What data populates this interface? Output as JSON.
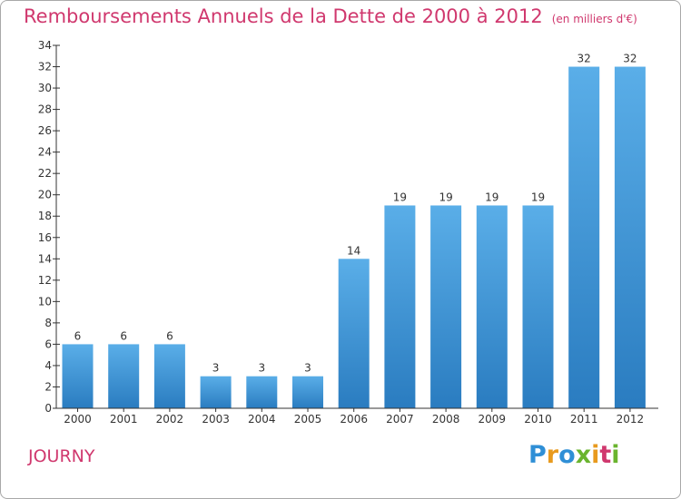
{
  "header": {
    "title": "Remboursements Annuels de la Dette de 2000 à 2012",
    "unit": "(en milliers d'€)"
  },
  "footer": {
    "commune": "JOURNY",
    "brand_letters": [
      "P",
      "r",
      "o",
      "x",
      "i",
      "t",
      "i"
    ],
    "brand_colors": [
      "#2f8fd6",
      "#e89a1e",
      "#2f8fd6",
      "#6ab42e",
      "#e89a1e",
      "#d0386e",
      "#6ab42e"
    ]
  },
  "chart_data": {
    "type": "bar",
    "title": "Remboursements Annuels de la Dette de 2000 à 2012",
    "xlabel": "",
    "ylabel": "",
    "categories": [
      "2000",
      "2001",
      "2002",
      "2003",
      "2004",
      "2005",
      "2006",
      "2007",
      "2008",
      "2009",
      "2010",
      "2011",
      "2012"
    ],
    "values": [
      6,
      6,
      6,
      3,
      3,
      3,
      14,
      19,
      19,
      19,
      19,
      32,
      32
    ],
    "ylim": [
      0,
      34
    ],
    "yticks": [
      0,
      2,
      4,
      6,
      8,
      10,
      12,
      14,
      16,
      18,
      20,
      22,
      24,
      26,
      28,
      30,
      32,
      34
    ],
    "grid": false,
    "bar_color_top": "#5aaee8",
    "bar_color_bottom": "#2a7cc0",
    "axis_color": "#333333"
  }
}
